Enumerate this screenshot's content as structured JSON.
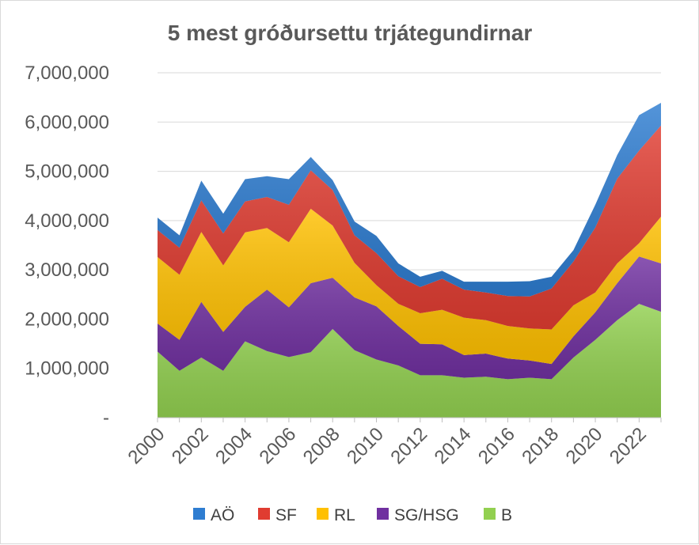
{
  "chart_data": {
    "type": "area",
    "stacked": true,
    "title": "5 mest gróðursettu trjátegundirnar",
    "xlabel": "",
    "ylabel": "",
    "ylim": [
      0,
      7000000
    ],
    "y_ticks": [
      0,
      1000000,
      2000000,
      3000000,
      4000000,
      5000000,
      6000000,
      7000000
    ],
    "y_tick_labels": [
      "-",
      "1,000,000",
      "2,000,000",
      "3,000,000",
      "4,000,000",
      "5,000,000",
      "6,000,000",
      "7,000,000"
    ],
    "x_tick_labels": [
      "2000",
      "2002",
      "2004",
      "2006",
      "2008",
      "2010",
      "2012",
      "2014",
      "2016",
      "2018",
      "2020",
      "2022"
    ],
    "x": [
      2000,
      2001,
      2002,
      2003,
      2004,
      2005,
      2006,
      2007,
      2008,
      2009,
      2010,
      2011,
      2012,
      2013,
      2014,
      2015,
      2016,
      2017,
      2018,
      2019,
      2020,
      2021,
      2022,
      2023
    ],
    "legend_position": "bottom",
    "gridlines": true,
    "series": [
      {
        "name": "B",
        "color": "#92d050",
        "values": [
          1340000,
          950000,
          1220000,
          950000,
          1550000,
          1350000,
          1230000,
          1330000,
          1800000,
          1370000,
          1180000,
          1060000,
          860000,
          860000,
          810000,
          830000,
          780000,
          810000,
          780000,
          1220000,
          1580000,
          1980000,
          2310000,
          2150000
        ]
      },
      {
        "name": "SG/HSG",
        "color": "#7030a0",
        "values": [
          570000,
          630000,
          1130000,
          790000,
          700000,
          1250000,
          1010000,
          1400000,
          1040000,
          1070000,
          1080000,
          800000,
          640000,
          630000,
          460000,
          470000,
          420000,
          350000,
          310000,
          430000,
          560000,
          750000,
          960000,
          980000
        ]
      },
      {
        "name": "RL",
        "color": "#ffc000",
        "values": [
          1350000,
          1320000,
          1420000,
          1350000,
          1510000,
          1250000,
          1320000,
          1510000,
          1060000,
          700000,
          430000,
          450000,
          620000,
          700000,
          760000,
          680000,
          660000,
          650000,
          700000,
          630000,
          400000,
          400000,
          270000,
          950000
        ]
      },
      {
        "name": "SF",
        "color": "#e03c31",
        "values": [
          550000,
          550000,
          640000,
          650000,
          630000,
          630000,
          760000,
          780000,
          720000,
          560000,
          650000,
          560000,
          530000,
          630000,
          570000,
          560000,
          610000,
          650000,
          830000,
          890000,
          1320000,
          1720000,
          1880000,
          1850000
        ]
      },
      {
        "name": "AÖ",
        "color": "#2e7dd1",
        "values": [
          250000,
          250000,
          400000,
          400000,
          450000,
          420000,
          520000,
          270000,
          200000,
          280000,
          350000,
          260000,
          210000,
          160000,
          160000,
          220000,
          290000,
          310000,
          240000,
          230000,
          460000,
          480000,
          720000,
          460000
        ]
      }
    ]
  }
}
